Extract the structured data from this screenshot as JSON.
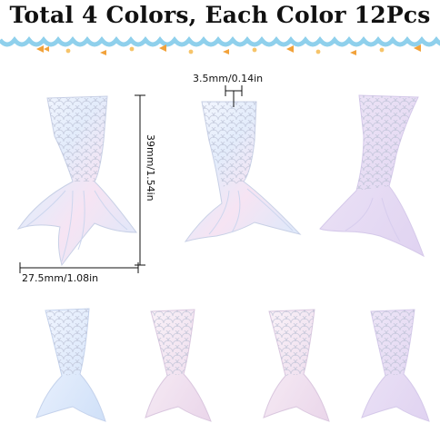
{
  "header": {
    "title": "Total 4 Colors, Each Color 12Pcs"
  },
  "measurements": {
    "thickness": "3.5mm/0.14in",
    "height": "39mm/1.54in",
    "width": "27.5mm/1.08in"
  },
  "product": {
    "large_tails": 3,
    "small_tails": 4,
    "colors": {
      "iridescent_white": "#eef3fb",
      "lavender": "#e7dcf3",
      "blue_white": "#dfe9f8",
      "pink_white": "#f3e3ee"
    }
  }
}
